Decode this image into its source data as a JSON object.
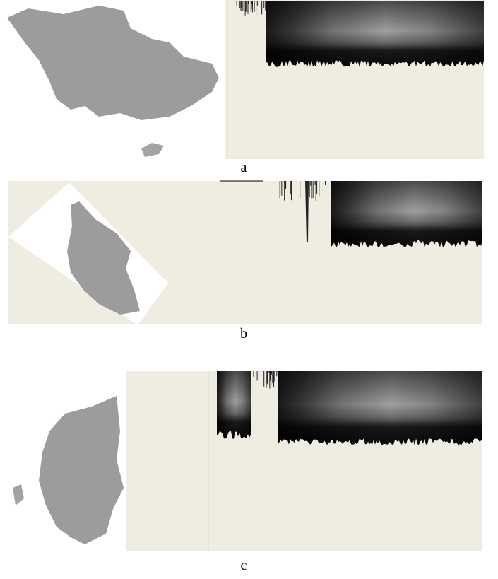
{
  "figures": [
    {
      "label": "a"
    },
    {
      "label": "b"
    },
    {
      "label": "c"
    }
  ]
}
